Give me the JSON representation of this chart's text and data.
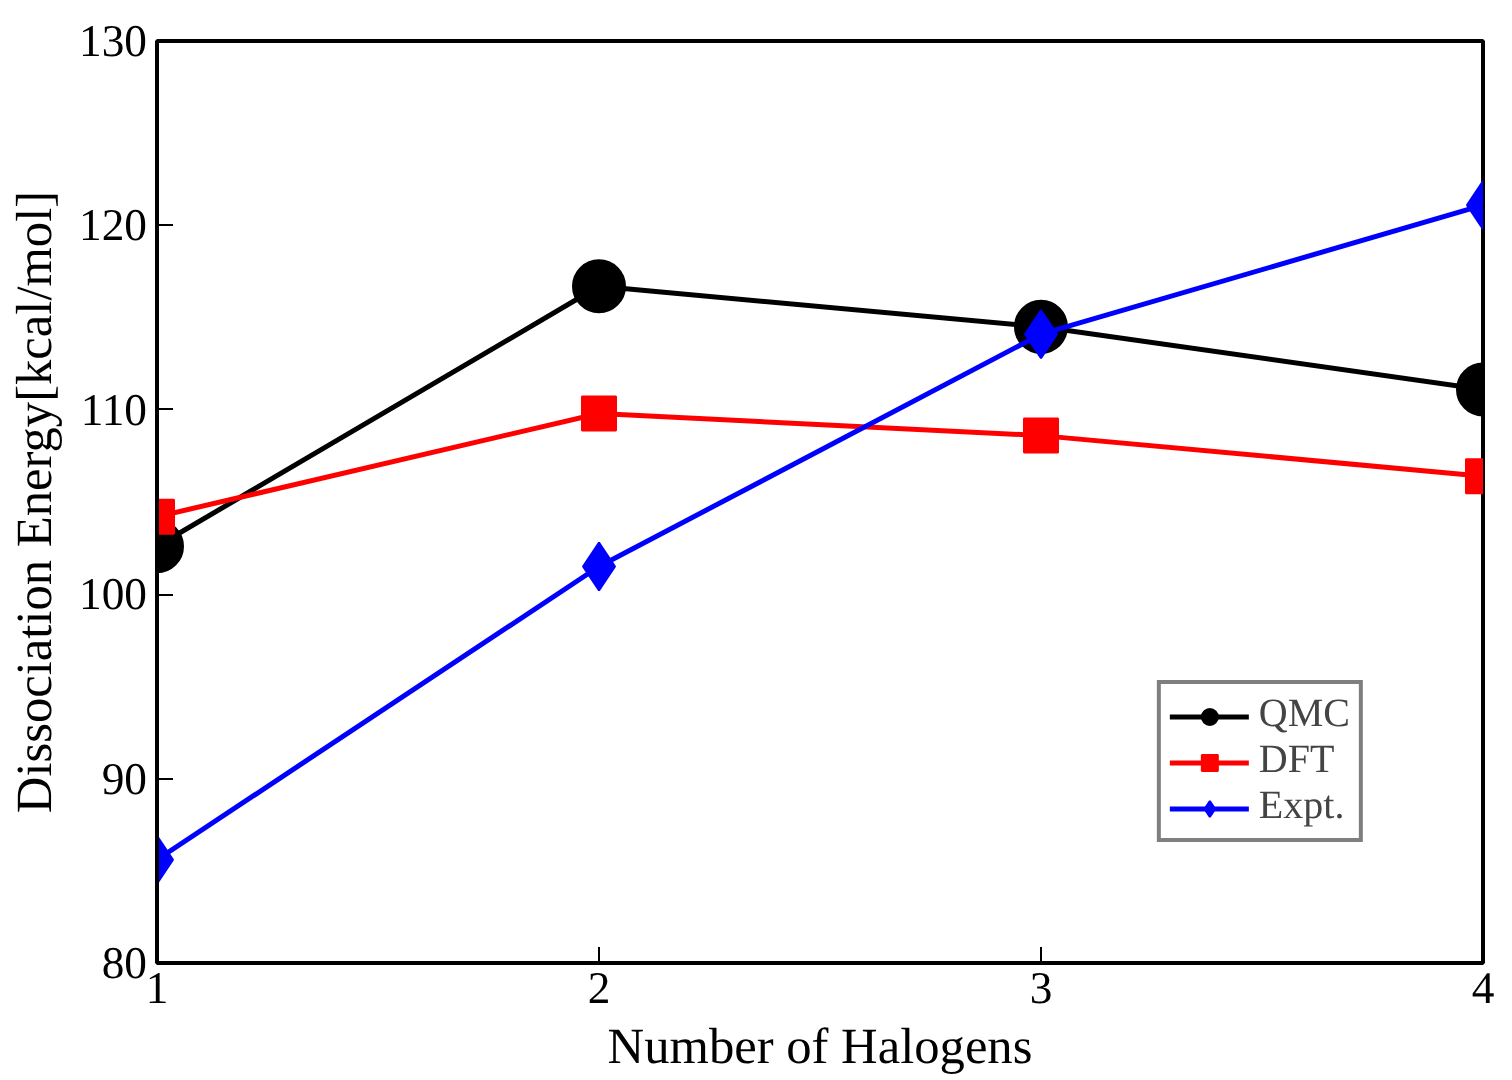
{
  "chart_data": {
    "type": "line",
    "xlabel": "Number of Halogens",
    "ylabel": "Dissociation Energy[kcal/mol]",
    "x": [
      1,
      2,
      3,
      4
    ],
    "series": [
      {
        "name": "QMC",
        "color": "#000000",
        "marker": "circle",
        "values": [
          102.6,
          116.7,
          114.5,
          111.1
        ]
      },
      {
        "name": "DFT",
        "color": "#ff0000",
        "marker": "square",
        "values": [
          104.2,
          109.8,
          108.6,
          106.4
        ]
      },
      {
        "name": "Expt.",
        "color": "#0000ff",
        "marker": "diamond",
        "values": [
          85.6,
          101.5,
          114.1,
          121.1
        ]
      }
    ],
    "xlim": [
      1,
      4
    ],
    "ylim": [
      80,
      130
    ],
    "xticks": [
      1,
      2,
      3,
      4
    ],
    "yticks": [
      80,
      90,
      100,
      110,
      120,
      130
    ],
    "grid": false,
    "legend": "bottom right",
    "line_style": "solid"
  }
}
